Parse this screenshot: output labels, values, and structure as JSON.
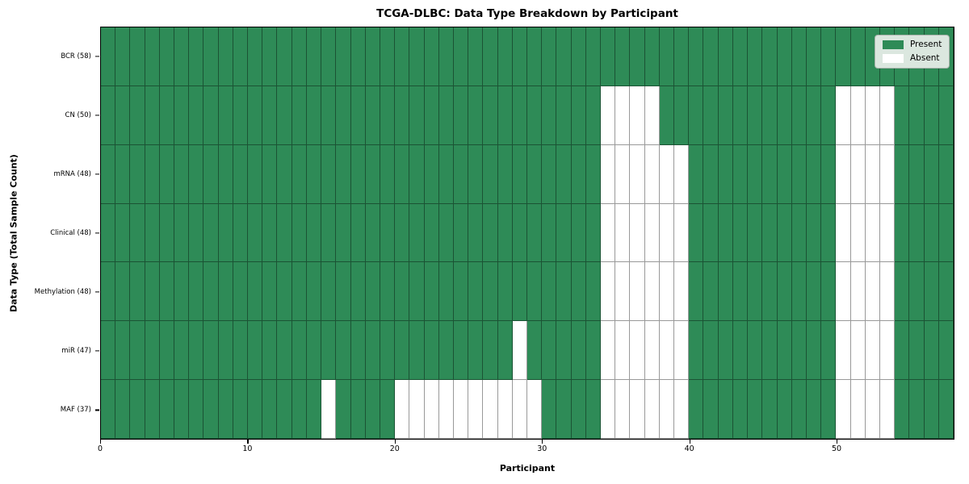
{
  "chart_data": {
    "type": "heatmap",
    "title": "TCGA-DLBC: Data Type Breakdown by Participant",
    "xlabel": "Participant",
    "ylabel": "Data Type (Total Sample Count)",
    "x_ticks": [
      0,
      10,
      20,
      30,
      40,
      50
    ],
    "x_range": [
      0,
      58
    ],
    "n_participants": 58,
    "grid": true,
    "legend_position": "upper right",
    "legend": [
      {
        "label": "Present",
        "color": "#2e8b57"
      },
      {
        "label": "Absent",
        "color": "#ffffff"
      }
    ],
    "colors": {
      "present": "#2e8b57",
      "absent": "#ffffff",
      "cell_border": "rgba(0,0,0,0.40)",
      "legend_bg": "#dbe7df"
    },
    "rows": [
      {
        "label": "BCR (58)",
        "data_type": "BCR",
        "present_count": 58,
        "absent_participants": []
      },
      {
        "label": "CN (50)",
        "data_type": "CN",
        "present_count": 50,
        "absent_participants": [
          34,
          35,
          36,
          37,
          50,
          51,
          52,
          53
        ]
      },
      {
        "label": "mRNA (48)",
        "data_type": "mRNA",
        "present_count": 48,
        "absent_participants": [
          34,
          35,
          36,
          37,
          38,
          39,
          50,
          51,
          52,
          53
        ]
      },
      {
        "label": "Clinical (48)",
        "data_type": "Clinical",
        "present_count": 48,
        "absent_participants": [
          34,
          35,
          36,
          37,
          38,
          39,
          50,
          51,
          52,
          53
        ]
      },
      {
        "label": "Methylation (48)",
        "data_type": "Methylation",
        "present_count": 48,
        "absent_participants": [
          34,
          35,
          36,
          37,
          38,
          39,
          50,
          51,
          52,
          53
        ]
      },
      {
        "label": "miR (47)",
        "data_type": "miR",
        "present_count": 47,
        "absent_participants": [
          28,
          34,
          35,
          36,
          37,
          38,
          39,
          50,
          51,
          52,
          53
        ]
      },
      {
        "label": "MAF (37)",
        "data_type": "MAF",
        "present_count": 37,
        "absent_participants": [
          15,
          20,
          21,
          22,
          23,
          24,
          25,
          26,
          27,
          28,
          29,
          34,
          35,
          36,
          37,
          38,
          39,
          50,
          51,
          52,
          53
        ]
      }
    ]
  }
}
